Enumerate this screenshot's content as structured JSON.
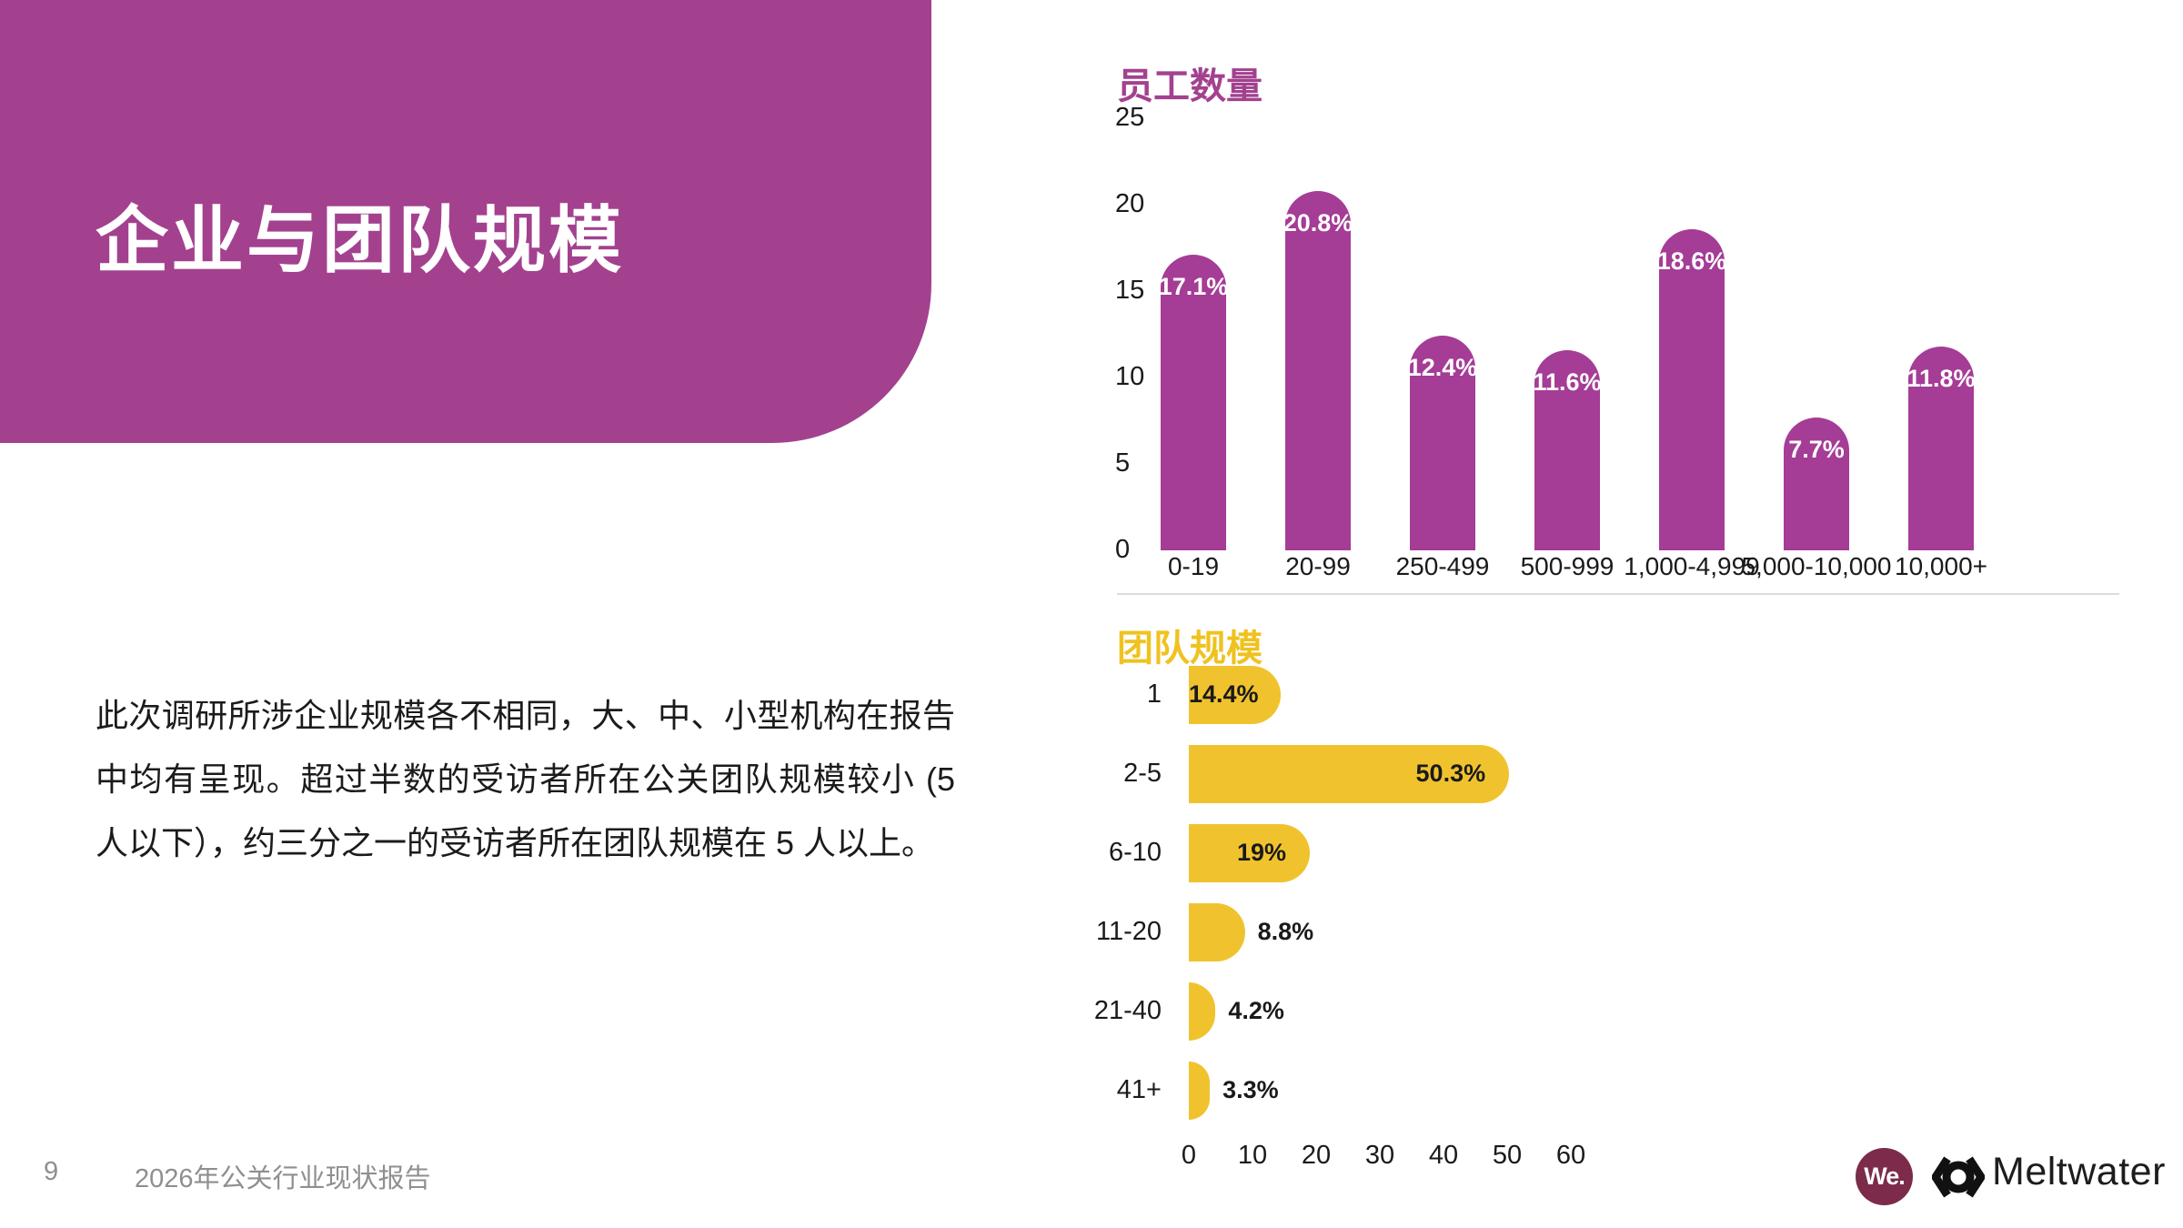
{
  "title_block": {
    "title": "企业与团队规模",
    "bg_color": "#A3418F",
    "text_color": "#FFFFFF"
  },
  "body_paragraph": "此次调研所涉企业规模各不相同，大、中、小型机构在报告中均有呈现。超过半数的受访者所在公关团队规模较小 (5 人以下），约三分之一的受访者所在团队规模在 5 人以上。",
  "footer": {
    "page_number": "9",
    "report_title": "2026年公关行业现状报告",
    "text_color": "#8F8F8F"
  },
  "logos": {
    "we_label": "We.",
    "we_bg_color": "#7C2B4B",
    "meltwater_label": "Meltwater",
    "meltwater_color": "#1D1D1D"
  },
  "divider_color": "#DCDCDC",
  "chart_data": [
    {
      "type": "bar",
      "orientation": "vertical",
      "title": "员工数量",
      "title_color": "#A3418F",
      "bar_color": "#A53C96",
      "categories": [
        "0-19",
        "20-99",
        "250-499",
        "500-999",
        "1,000-4,999",
        "5,000-10,000",
        "10,000+"
      ],
      "values": [
        17.1,
        20.8,
        12.4,
        11.6,
        18.6,
        7.7,
        11.8
      ],
      "labels": [
        "17.1%",
        "20.8%",
        "12.4%",
        "11.6%",
        "18.6%",
        "7.7%",
        "11.8%"
      ],
      "label_color": "#FFFFFF",
      "ylim": [
        0,
        25
      ],
      "yticks": [
        0,
        5,
        10,
        15,
        20,
        25
      ],
      "grid": false,
      "legend": "none",
      "value_label_position": "inside-top"
    },
    {
      "type": "bar",
      "orientation": "horizontal",
      "title": "团队规模",
      "title_color": "#EFC21F",
      "bar_color": "#F0C32E",
      "categories": [
        "1",
        "2-5",
        "6-10",
        "11-20",
        "21-40",
        "41+"
      ],
      "values": [
        14.4,
        50.3,
        19,
        8.8,
        4.2,
        3.3
      ],
      "labels": [
        "14.4%",
        "50.3%",
        "19%",
        "8.8%",
        "4.2%",
        "3.3%"
      ],
      "label_inside": [
        true,
        true,
        true,
        false,
        false,
        false
      ],
      "label_color": "#1A1A1A",
      "xlim": [
        0,
        60
      ],
      "xticks": [
        0,
        10,
        20,
        30,
        40,
        50,
        60
      ],
      "grid": false,
      "legend": "none"
    }
  ]
}
